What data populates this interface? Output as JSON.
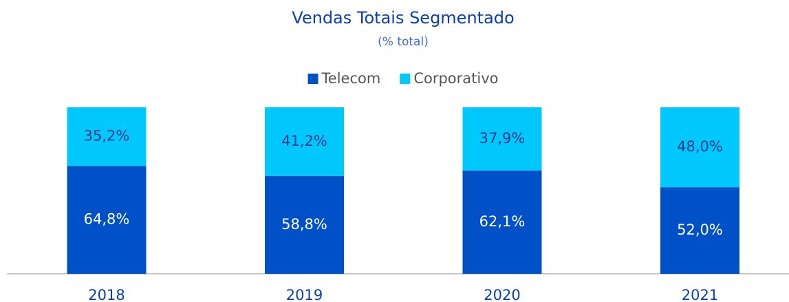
{
  "chart_data": {
    "type": "stacked_bar",
    "title": "Vendas Totais Segmentado",
    "subtitle": "(% total)",
    "categories": [
      "2018",
      "2019",
      "2020",
      "2021"
    ],
    "series": [
      {
        "name": "Telecom",
        "color": "#0050c8",
        "values": [
          64.8,
          58.8,
          62.1,
          52.0
        ],
        "value_labels": [
          "64,8%",
          "58,8%",
          "62,1%",
          "52,0%"
        ]
      },
      {
        "name": "Corporativo",
        "color": "#00c8fc",
        "values": [
          35.2,
          41.2,
          37.9,
          48.0
        ],
        "value_labels": [
          "35,2%",
          "41,2%",
          "37,9%",
          "48,0%"
        ]
      }
    ],
    "legend": "top"
  }
}
